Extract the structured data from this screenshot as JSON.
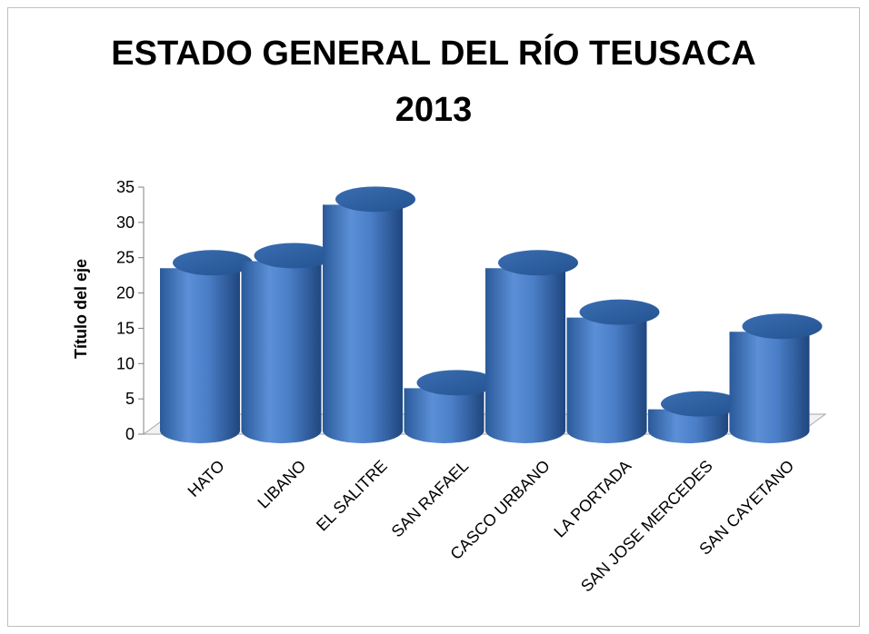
{
  "chart_data": {
    "type": "bar",
    "title_line1": "ESTADO GENERAL DEL RÍO TEUSACA",
    "title_line2": "2013",
    "xlabel": "",
    "ylabel": "Título del eje",
    "ylim": [
      0,
      35
    ],
    "yticks": [
      "0",
      "5",
      "10",
      "15",
      "20",
      "25",
      "30",
      "35"
    ],
    "categories": [
      "HATO",
      "LIBANO",
      "EL SALITRE",
      "SAN RAFAEL",
      "CASCO URBANO",
      "LA PORTADA",
      "SAN JOSE MERCEDES",
      "SAN CAYETANO"
    ],
    "values": [
      23,
      24,
      32,
      6,
      23,
      16,
      3,
      14
    ],
    "bar_color": "#4f81bd",
    "grid": false,
    "legend": "none"
  }
}
